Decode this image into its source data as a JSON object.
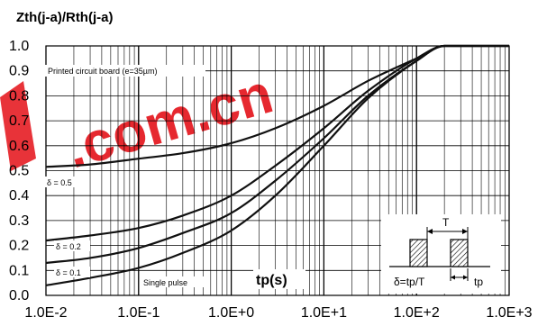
{
  "chart_data": {
    "type": "line",
    "title": "Zth(j-a)/Rth(j-a)",
    "xlabel": "tp(s)",
    "ylabel": "",
    "x_scale": "log",
    "xlim": [
      0.01,
      1000
    ],
    "ylim": [
      0.0,
      1.0
    ],
    "grid": true,
    "x_tick_labels": [
      "1.0E-2",
      "1.0E-1",
      "1.0E+0",
      "1.0E+1",
      "1.0E+2",
      "1.0E+3"
    ],
    "y_tick_labels": [
      "0.0",
      "0.1",
      "0.2",
      "0.3",
      "0.4",
      "0.5",
      "0.6",
      "0.7",
      "0.8",
      "0.9",
      "1.0"
    ],
    "annotation": "Printed circuit board (e=35µm)",
    "series": [
      {
        "name": "δ = 0.5",
        "x": [
          0.01,
          0.03,
          0.1,
          0.3,
          1,
          3,
          10,
          30,
          100,
          200,
          1000
        ],
        "y": [
          0.515,
          0.525,
          0.548,
          0.57,
          0.61,
          0.67,
          0.76,
          0.86,
          0.95,
          1.0,
          1.0
        ]
      },
      {
        "name": "δ = 0.2",
        "x": [
          0.01,
          0.03,
          0.1,
          0.3,
          1,
          3,
          10,
          30,
          100,
          200,
          1000
        ],
        "y": [
          0.22,
          0.24,
          0.27,
          0.32,
          0.4,
          0.52,
          0.67,
          0.82,
          0.95,
          1.0,
          1.0
        ]
      },
      {
        "name": "δ = 0.1",
        "x": [
          0.01,
          0.03,
          0.1,
          0.3,
          1,
          3,
          10,
          30,
          100,
          200,
          1000
        ],
        "y": [
          0.13,
          0.15,
          0.19,
          0.25,
          0.33,
          0.46,
          0.63,
          0.8,
          0.94,
          1.0,
          1.0
        ]
      },
      {
        "name": "Single pulse",
        "x": [
          0.01,
          0.03,
          0.1,
          0.3,
          1,
          3,
          10,
          30,
          100,
          200,
          1000
        ],
        "y": [
          0.04,
          0.07,
          0.11,
          0.17,
          0.26,
          0.4,
          0.6,
          0.79,
          0.94,
          1.0,
          1.0
        ]
      }
    ],
    "inset": {
      "delta_label": "δ=tp/T",
      "T_label": "T",
      "tp_label": "tp"
    },
    "watermark": ".com.cn",
    "colors": {
      "curves": "#111111",
      "grid": "#000000",
      "watermark": "#e51d24"
    }
  }
}
